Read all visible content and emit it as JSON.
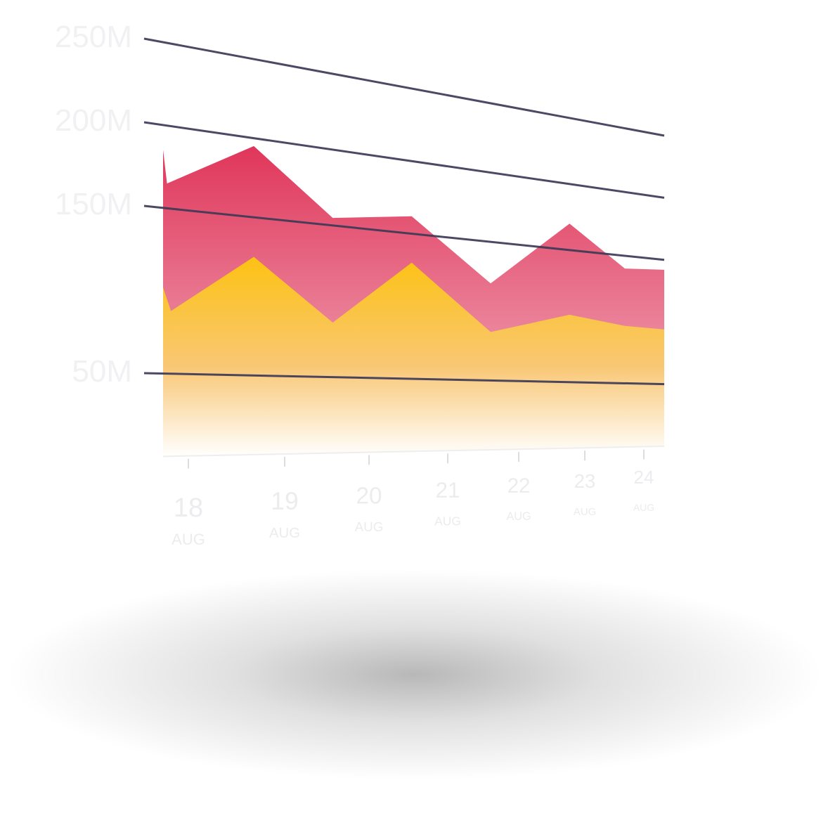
{
  "chart_data": {
    "type": "area",
    "title": "",
    "xlabel": "",
    "ylabel": "",
    "y_ticks": [
      "50M",
      "150M",
      "200M",
      "250M"
    ],
    "y_unit": "M",
    "ylim": [
      0,
      250
    ],
    "grid": true,
    "x_labels": [
      {
        "day": "18",
        "month": "AUG"
      },
      {
        "day": "19",
        "month": "AUG"
      },
      {
        "day": "20",
        "month": "AUG"
      },
      {
        "day": "21",
        "month": "AUG"
      },
      {
        "day": "22",
        "month": "AUG"
      },
      {
        "day": "23",
        "month": "AUG"
      },
      {
        "day": "24",
        "month": "AUG"
      }
    ],
    "series": [
      {
        "color": "#e13a5e",
        "points": [
          [
            17.85,
            185
          ],
          [
            17.9,
            165
          ],
          [
            19.0,
            195
          ],
          [
            20.0,
            155
          ],
          [
            21.0,
            162
          ],
          [
            22.0,
            120
          ],
          [
            23.0,
            170
          ],
          [
            23.7,
            140
          ],
          [
            24.2,
            142
          ]
        ]
      },
      {
        "color": "#fbbf1e",
        "points": [
          [
            17.85,
            102
          ],
          [
            17.95,
            88
          ],
          [
            19.0,
            125
          ],
          [
            20.0,
            86
          ],
          [
            21.0,
            130
          ],
          [
            22.0,
            85
          ],
          [
            23.0,
            101
          ],
          [
            23.7,
            95
          ],
          [
            24.2,
            94
          ]
        ]
      }
    ]
  }
}
